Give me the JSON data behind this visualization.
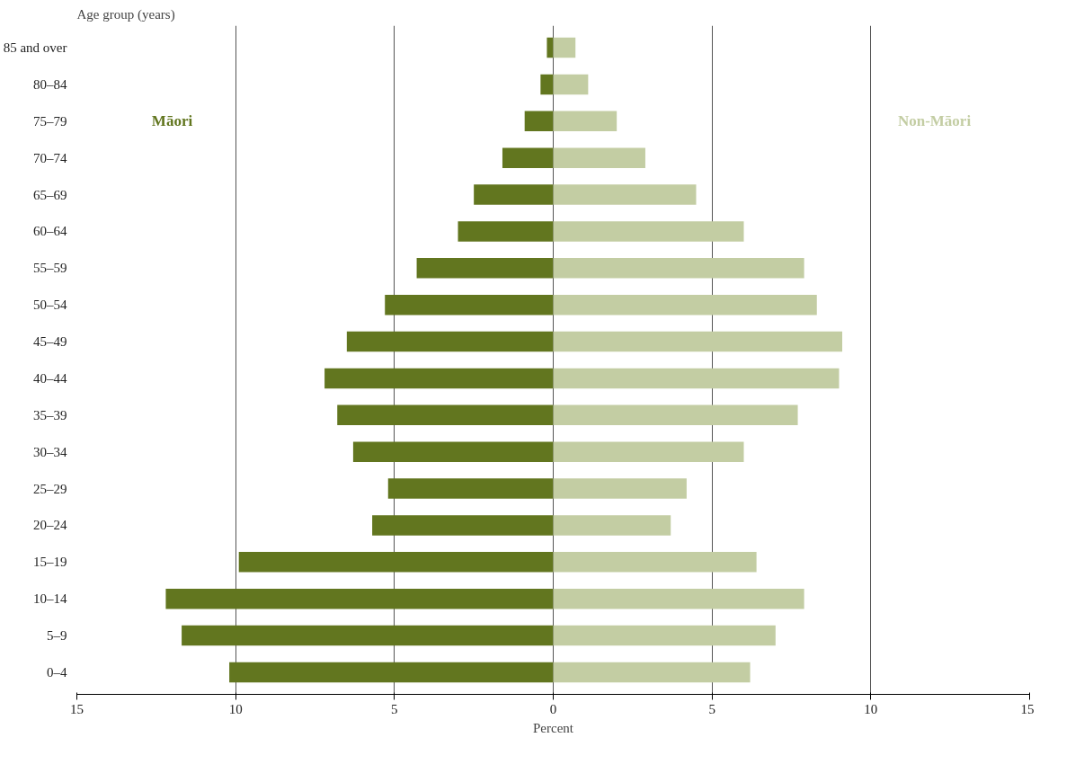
{
  "chart_data": {
    "type": "bar",
    "orientation": "horizontal",
    "ylabel": "Age group (years)",
    "xlabel": "Percent",
    "categories": [
      "85 and over",
      "80–84",
      "75–79",
      "70–74",
      "65–69",
      "60–64",
      "55–59",
      "50–54",
      "45–49",
      "40–44",
      "35–39",
      "30–34",
      "25–29",
      "20–24",
      "15–19",
      "10–14",
      "5–9",
      "0–4"
    ],
    "series": [
      {
        "name": "Māori",
        "color": "#62761f",
        "values": [
          -0.2,
          -0.4,
          -0.9,
          -1.6,
          -2.5,
          -3.0,
          -4.3,
          -5.3,
          -6.5,
          -7.2,
          -6.8,
          -6.3,
          -5.2,
          -5.7,
          -9.9,
          -12.2,
          -11.7,
          -10.2
        ]
      },
      {
        "name": "Non-Māori",
        "color": "#c3cda3",
        "values": [
          0.7,
          1.1,
          2.0,
          2.9,
          4.5,
          6.0,
          7.9,
          8.3,
          9.1,
          9.0,
          7.7,
          6.0,
          4.2,
          3.7,
          6.4,
          7.9,
          7.0,
          6.2
        ]
      }
    ],
    "xlim": [
      -15,
      15
    ],
    "xticks": [
      {
        "value": -15,
        "label": "15"
      },
      {
        "value": -10,
        "label": "10"
      },
      {
        "value": -5,
        "label": "5"
      },
      0,
      5,
      10,
      15
    ],
    "grid": "x",
    "stacked": true
  }
}
